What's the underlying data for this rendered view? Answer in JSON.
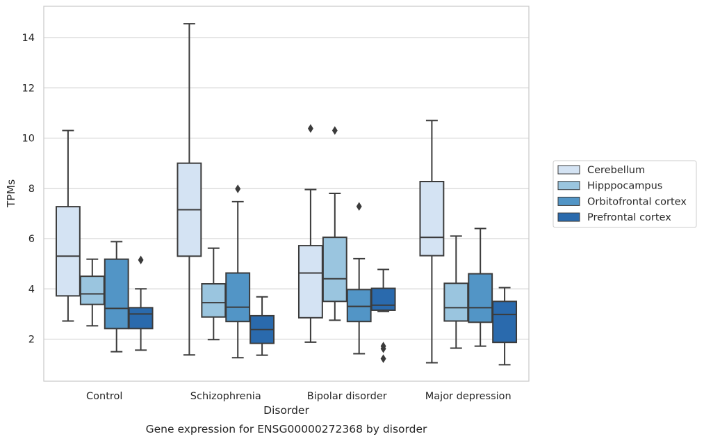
{
  "chart_data": {
    "type": "box",
    "title": "Gene expression for ENSG00000272368 by disorder",
    "xlabel": "Disorder",
    "ylabel": "TPMs",
    "ylim": [
      0.3,
      15.2
    ],
    "yticks": [
      2,
      4,
      6,
      8,
      10,
      12,
      14
    ],
    "grid": true,
    "legend_position": "right",
    "categories": [
      "Control",
      "Schizophrenia",
      "Bipolar disorder",
      "Major depression"
    ],
    "series": [
      {
        "name": "Cerebellum",
        "color": "#d4e3f3",
        "boxes": [
          {
            "whislo": 2.72,
            "q1": 3.72,
            "med": 5.3,
            "q3": 7.27,
            "whishi": 10.3,
            "fliers": []
          },
          {
            "whislo": 1.37,
            "q1": 5.3,
            "med": 7.15,
            "q3": 9.0,
            "whishi": 14.55,
            "fliers": []
          },
          {
            "whislo": 1.88,
            "q1": 2.85,
            "med": 4.63,
            "q3": 5.72,
            "whishi": 7.95,
            "fliers": [
              10.38
            ]
          },
          {
            "whislo": 1.06,
            "q1": 5.32,
            "med": 6.05,
            "q3": 8.27,
            "whishi": 10.7,
            "fliers": []
          }
        ]
      },
      {
        "name": "Hipppocampus",
        "color": "#9ac5df",
        "boxes": [
          {
            "whislo": 2.53,
            "q1": 3.38,
            "med": 3.8,
            "q3": 4.5,
            "whishi": 5.18,
            "fliers": []
          },
          {
            "whislo": 1.98,
            "q1": 2.88,
            "med": 3.45,
            "q3": 4.2,
            "whishi": 5.62,
            "fliers": []
          },
          {
            "whislo": 2.75,
            "q1": 3.5,
            "med": 4.4,
            "q3": 6.05,
            "whishi": 7.8,
            "fliers": [
              10.3
            ]
          },
          {
            "whislo": 1.64,
            "q1": 2.72,
            "med": 3.25,
            "q3": 4.22,
            "whishi": 6.1,
            "fliers": []
          }
        ]
      },
      {
        "name": "Orbitofrontal cortex",
        "color": "#5295c6",
        "boxes": [
          {
            "whislo": 1.5,
            "q1": 2.42,
            "med": 3.22,
            "q3": 5.18,
            "whishi": 5.88,
            "fliers": []
          },
          {
            "whislo": 1.26,
            "q1": 2.7,
            "med": 3.27,
            "q3": 4.63,
            "whishi": 7.47,
            "fliers": [
              7.98
            ]
          },
          {
            "whislo": 1.42,
            "q1": 2.7,
            "med": 3.3,
            "q3": 3.97,
            "whishi": 5.2,
            "fliers": [
              7.28
            ]
          },
          {
            "whislo": 1.72,
            "q1": 2.67,
            "med": 3.25,
            "q3": 4.6,
            "whishi": 6.4,
            "fliers": []
          }
        ]
      },
      {
        "name": "Prefrontal cortex",
        "color": "#2a6aad",
        "boxes": [
          {
            "whislo": 1.56,
            "q1": 2.42,
            "med": 3.0,
            "q3": 3.25,
            "whishi": 4.0,
            "fliers": [
              5.15
            ]
          },
          {
            "whislo": 1.36,
            "q1": 1.83,
            "med": 2.38,
            "q3": 2.93,
            "whishi": 3.68,
            "fliers": []
          },
          {
            "whislo": 3.1,
            "q1": 3.15,
            "med": 3.35,
            "q3": 4.02,
            "whishi": 4.77,
            "fliers": [
              1.72,
              1.62,
              1.22
            ]
          },
          {
            "whislo": 0.98,
            "q1": 1.87,
            "med": 2.98,
            "q3": 3.5,
            "whishi": 4.05,
            "fliers": []
          }
        ]
      }
    ]
  }
}
